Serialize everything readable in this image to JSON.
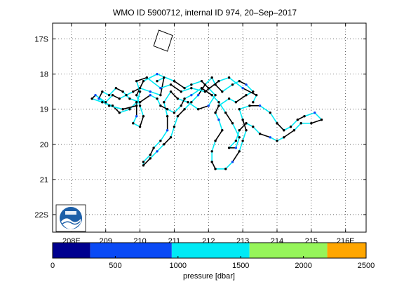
{
  "chart_data": {
    "type": "scatter",
    "title": "WMO ID 5900712, internal ID 974, 20–Sep–2017",
    "x_ticks": [
      {
        "value": 208,
        "label": "208E"
      },
      {
        "value": 209,
        "label": "209"
      },
      {
        "value": 210,
        "label": "210"
      },
      {
        "value": 211,
        "label": "211"
      },
      {
        "value": 212,
        "label": "212"
      },
      {
        "value": 213,
        "label": "213"
      },
      {
        "value": 214,
        "label": "214"
      },
      {
        "value": 215,
        "label": "215"
      },
      {
        "value": 216,
        "label": "216E"
      }
    ],
    "y_ticks": [
      {
        "value": -17,
        "label": "17S"
      },
      {
        "value": -18,
        "label": "18"
      },
      {
        "value": -19,
        "label": "19"
      },
      {
        "value": -20,
        "label": "20"
      },
      {
        "value": -21,
        "label": "21"
      },
      {
        "value": -22,
        "label": "22S"
      }
    ],
    "xlim": [
      207.45,
      216.6
    ],
    "ylim": [
      -22.5,
      -16.55
    ],
    "grid": true,
    "colorbar": {
      "label": "pressure [dbar]",
      "ticks": [
        0,
        500,
        1000,
        1500,
        2000,
        2500
      ],
      "range": [
        0,
        2500
      ],
      "bins": [
        {
          "from": 0,
          "to": 300,
          "color": "#00008f"
        },
        {
          "from": 300,
          "to": 950,
          "color": "#0a4af5"
        },
        {
          "from": 950,
          "to": 1570,
          "color": "#00eaf5"
        },
        {
          "from": 1570,
          "to": 2190,
          "color": "#96f55a"
        },
        {
          "from": 2190,
          "to": 2500,
          "color": "#ffa600"
        }
      ]
    },
    "track_color": "#000000",
    "segment_color": "#00eaf5",
    "track": [
      [
        210.5,
        -18.2
      ],
      [
        210.7,
        -18.1
      ],
      [
        210.6,
        -18.6
      ],
      [
        210.3,
        -18.5
      ],
      [
        210.0,
        -18.4
      ],
      [
        209.8,
        -18.5
      ],
      [
        209.6,
        -18.6
      ],
      [
        209.4,
        -18.7
      ],
      [
        209.2,
        -18.6
      ],
      [
        209.0,
        -18.8
      ],
      [
        208.7,
        -18.6
      ],
      [
        208.6,
        -18.7
      ],
      [
        208.9,
        -18.8
      ],
      [
        209.2,
        -18.9
      ],
      [
        209.4,
        -19.1
      ],
      [
        209.7,
        -19.0
      ],
      [
        209.9,
        -18.8
      ],
      [
        209.9,
        -19.2
      ],
      [
        209.8,
        -19.4
      ],
      [
        210.0,
        -19.5
      ],
      [
        210.1,
        -19.2
      ],
      [
        210.0,
        -18.9
      ],
      [
        209.9,
        -18.6
      ],
      [
        210.1,
        -18.2
      ],
      [
        210.5,
        -18.0
      ],
      [
        211.0,
        -18.2
      ],
      [
        211.3,
        -18.4
      ],
      [
        211.5,
        -18.3
      ],
      [
        211.8,
        -18.2
      ],
      [
        212.0,
        -18.4
      ],
      [
        212.2,
        -18.6
      ],
      [
        212.0,
        -18.9
      ],
      [
        211.7,
        -19.0
      ],
      [
        211.4,
        -18.8
      ],
      [
        211.1,
        -18.7
      ],
      [
        210.9,
        -18.5
      ],
      [
        210.7,
        -18.8
      ],
      [
        210.8,
        -19.2
      ],
      [
        210.8,
        -19.6
      ],
      [
        210.6,
        -19.9
      ],
      [
        210.4,
        -20.1
      ],
      [
        210.3,
        -20.3
      ],
      [
        210.1,
        -20.5
      ],
      [
        210.1,
        -20.6
      ],
      [
        210.3,
        -20.4
      ],
      [
        210.5,
        -20.2
      ],
      [
        210.7,
        -20.0
      ],
      [
        210.9,
        -19.8
      ],
      [
        211.0,
        -19.5
      ],
      [
        211.1,
        -19.2
      ],
      [
        211.3,
        -19.0
      ],
      [
        211.5,
        -18.8
      ],
      [
        211.7,
        -18.6
      ],
      [
        211.9,
        -18.3
      ],
      [
        212.1,
        -18.1
      ],
      [
        212.2,
        -18.3
      ],
      [
        212.4,
        -18.5
      ],
      [
        212.7,
        -18.3
      ],
      [
        212.9,
        -18.2
      ],
      [
        213.1,
        -18.3
      ],
      [
        213.3,
        -18.5
      ],
      [
        213.1,
        -18.6
      ],
      [
        212.8,
        -18.8
      ],
      [
        212.6,
        -18.7
      ],
      [
        212.3,
        -18.9
      ],
      [
        212.2,
        -19.1
      ],
      [
        212.3,
        -19.3
      ],
      [
        212.4,
        -19.6
      ],
      [
        212.2,
        -19.9
      ],
      [
        212.1,
        -20.2
      ],
      [
        212.1,
        -20.5
      ],
      [
        212.2,
        -20.7
      ],
      [
        212.5,
        -20.7
      ],
      [
        212.7,
        -20.5
      ],
      [
        212.9,
        -20.2
      ],
      [
        213.0,
        -19.9
      ],
      [
        213.1,
        -19.6
      ],
      [
        213.0,
        -19.3
      ],
      [
        212.9,
        -19.0
      ],
      [
        213.2,
        -18.9
      ],
      [
        213.5,
        -18.9
      ],
      [
        213.8,
        -19.1
      ],
      [
        214.0,
        -19.4
      ],
      [
        214.2,
        -19.6
      ],
      [
        214.4,
        -19.5
      ],
      [
        214.6,
        -19.3
      ],
      [
        214.8,
        -19.2
      ],
      [
        215.1,
        -19.1
      ],
      [
        215.3,
        -19.3
      ],
      [
        215.0,
        -19.4
      ],
      [
        214.7,
        -19.4
      ],
      [
        214.5,
        -19.6
      ],
      [
        214.2,
        -19.8
      ],
      [
        214.0,
        -19.9
      ],
      [
        213.8,
        -19.8
      ],
      [
        213.5,
        -19.7
      ],
      [
        213.3,
        -19.5
      ],
      [
        213.1,
        -19.4
      ],
      [
        212.9,
        -19.6
      ],
      [
        212.8,
        -19.9
      ],
      [
        212.6,
        -20.1
      ],
      [
        212.8,
        -20.1
      ],
      [
        212.9,
        -19.8
      ],
      [
        212.7,
        -19.4
      ],
      [
        212.5,
        -19.1
      ],
      [
        212.3,
        -18.8
      ],
      [
        212.1,
        -18.6
      ],
      [
        211.8,
        -18.4
      ],
      [
        211.5,
        -18.6
      ],
      [
        211.3,
        -18.7
      ],
      [
        211.2,
        -18.9
      ],
      [
        211.0,
        -19.1
      ],
      [
        210.8,
        -19.0
      ],
      [
        210.6,
        -18.9
      ],
      [
        210.5,
        -18.7
      ],
      [
        210.3,
        -18.6
      ],
      [
        210.0,
        -18.8
      ],
      [
        209.7,
        -18.7
      ],
      [
        209.5,
        -18.5
      ],
      [
        209.3,
        -18.4
      ],
      [
        209.1,
        -18.6
      ],
      [
        208.9,
        -18.5
      ],
      [
        208.8,
        -18.7
      ],
      [
        209.1,
        -18.9
      ],
      [
        209.5,
        -19.0
      ],
      [
        209.9,
        -18.9
      ],
      [
        210.0,
        -18.5
      ],
      [
        209.9,
        -18.2
      ],
      [
        210.2,
        -18.1
      ],
      [
        210.6,
        -18.4
      ],
      [
        210.9,
        -18.3
      ],
      [
        211.2,
        -18.5
      ],
      [
        211.5,
        -18.4
      ],
      [
        211.9,
        -18.5
      ],
      [
        212.3,
        -18.2
      ],
      [
        212.6,
        -18.1
      ],
      [
        213.0,
        -18.4
      ],
      [
        213.4,
        -18.6
      ],
      [
        213.3,
        -18.8
      ]
    ],
    "track_flags": [
      [
        210.55,
        -16.75
      ],
      [
        210.95,
        -16.9
      ],
      [
        210.8,
        -17.35
      ],
      [
        210.4,
        -17.2
      ]
    ]
  }
}
